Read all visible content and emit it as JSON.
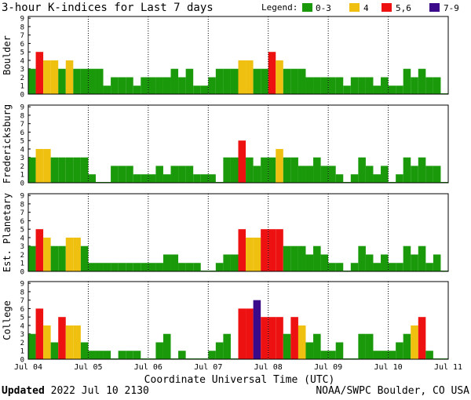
{
  "title": "3-hour K-indices for Last 7 days",
  "legend": {
    "label": "Legend:",
    "items": [
      {
        "label": "0-3",
        "color": "#1a9a0a"
      },
      {
        "label": "4",
        "color": "#f0c010"
      },
      {
        "label": "5,6",
        "color": "#ee1111"
      },
      {
        "label": "7-9",
        "color": "#3a0a8a"
      }
    ]
  },
  "colors": {
    "low": "#1a9a0a",
    "mid": "#f0c010",
    "high": "#ee1111",
    "severe": "#3a0a8a",
    "frame": "#000000"
  },
  "chart_data": {
    "type": "bar",
    "xlabel": "Coordinate Universal Time (UTC)",
    "x_ticks": [
      "Jul 04",
      "Jul 05",
      "Jul 06",
      "Jul 07",
      "Jul 08",
      "Jul 09",
      "Jul 10",
      "Jul 11"
    ],
    "y_ticks": [
      "0",
      "1",
      "2",
      "3",
      "4",
      "5",
      "6",
      "7",
      "8",
      "9"
    ],
    "ylim": [
      0,
      9
    ],
    "bins_per_day": 8,
    "series": [
      {
        "name": "Boulder",
        "values": [
          3,
          5,
          4,
          4,
          3,
          4,
          3,
          3,
          3,
          3,
          1,
          2,
          2,
          2,
          1,
          2,
          2,
          2,
          2,
          3,
          2,
          3,
          1,
          1,
          2,
          3,
          3,
          3,
          4,
          4,
          3,
          3,
          5,
          4,
          3,
          3,
          3,
          2,
          2,
          2,
          2,
          2,
          1,
          2,
          2,
          2,
          1,
          2,
          1,
          1,
          3,
          2,
          3,
          2,
          2,
          0
        ]
      },
      {
        "name": "Fredericksburg",
        "values": [
          3,
          4,
          4,
          3,
          3,
          3,
          3,
          3,
          1,
          0,
          0,
          2,
          2,
          2,
          1,
          1,
          1,
          2,
          1,
          2,
          2,
          2,
          1,
          1,
          1,
          0,
          3,
          3,
          5,
          3,
          2,
          3,
          3,
          4,
          3,
          3,
          2,
          2,
          3,
          2,
          2,
          1,
          0,
          1,
          3,
          2,
          1,
          2,
          0,
          1,
          3,
          2,
          3,
          2,
          2,
          0
        ]
      },
      {
        "name": "Est. Planetary",
        "values": [
          3,
          5,
          4,
          3,
          3,
          4,
          4,
          3,
          1,
          1,
          1,
          1,
          1,
          1,
          1,
          1,
          1,
          1,
          2,
          2,
          1,
          1,
          1,
          0,
          0,
          1,
          2,
          2,
          5,
          4,
          4,
          5,
          5,
          5,
          3,
          3,
          3,
          2,
          3,
          2,
          1,
          1,
          0,
          1,
          3,
          2,
          1,
          2,
          1,
          1,
          3,
          2,
          3,
          1,
          2,
          0
        ]
      },
      {
        "name": "College",
        "values": [
          3,
          6,
          4,
          2,
          5,
          4,
          4,
          2,
          1,
          1,
          1,
          0,
          1,
          1,
          1,
          0,
          0,
          2,
          3,
          0,
          1,
          0,
          0,
          0,
          1,
          2,
          3,
          0,
          6,
          6,
          7,
          5,
          5,
          5,
          3,
          5,
          4,
          2,
          3,
          1,
          1,
          2,
          0,
          0,
          3,
          3,
          1,
          1,
          1,
          2,
          3,
          4,
          5,
          1,
          0,
          0
        ]
      }
    ]
  },
  "footer": {
    "updated_label": "Updated",
    "updated_value": "2022 Jul 10 2130",
    "source": "NOAA/SWPC Boulder, CO USA"
  }
}
